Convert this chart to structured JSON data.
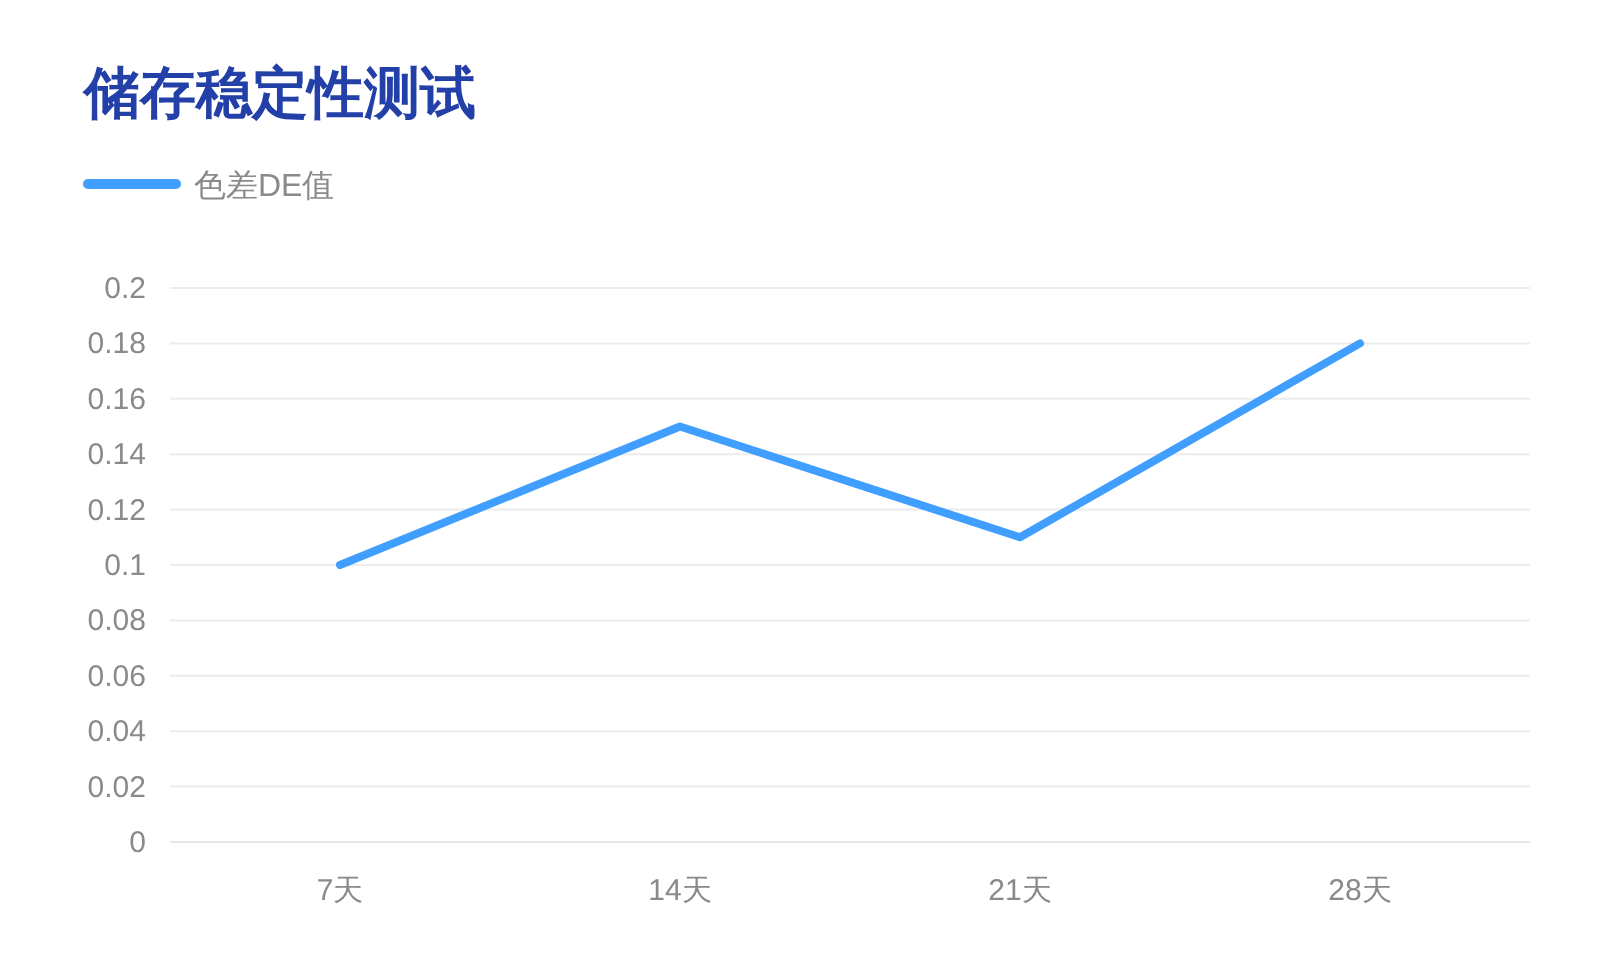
{
  "chart_data": {
    "type": "line",
    "title": "储存稳定性测试",
    "categories": [
      "7天",
      "14天",
      "21天",
      "28天"
    ],
    "series": [
      {
        "name": "色差DE值",
        "color": "#409eff",
        "values": [
          0.1,
          0.15,
          0.11,
          0.18
        ]
      }
    ],
    "ylim": [
      0,
      0.2
    ],
    "yticks": [
      0,
      0.02,
      0.04,
      0.06,
      0.08,
      0.1,
      0.12,
      0.14,
      0.16,
      0.18,
      0.2
    ],
    "grid": "y",
    "legend": "top left",
    "line_style": "solid"
  }
}
